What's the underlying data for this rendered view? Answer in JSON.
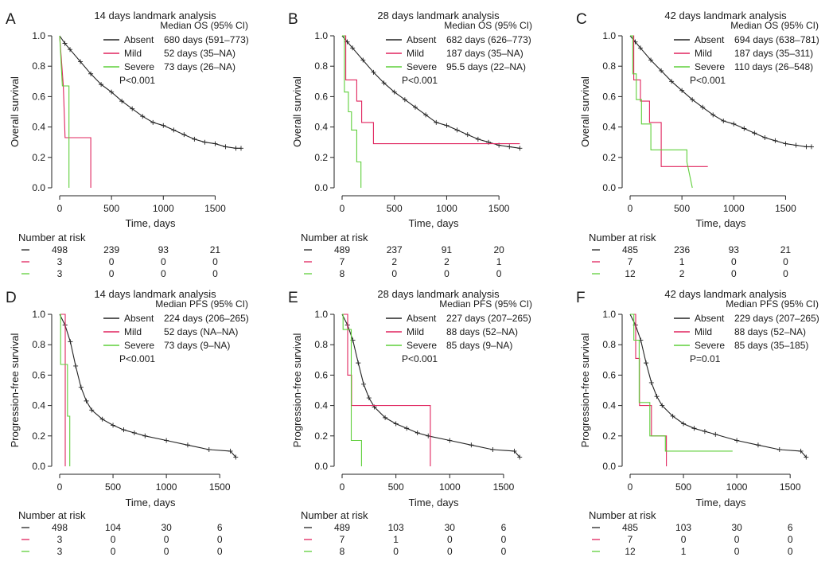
{
  "colors": {
    "absent": "#222222",
    "mild": "#e0245e",
    "severe": "#5fcf3a",
    "axis": "#222222"
  },
  "chart_data": [
    {
      "panel": "A",
      "type": "line",
      "title": "14 days landmark analysis",
      "xlabel": "Time, days",
      "ylabel": "Overall survival",
      "xlim": [
        0,
        1750
      ],
      "ylim": [
        0,
        1
      ],
      "xticks": [
        0,
        500,
        1000,
        1500
      ],
      "yticks": [
        0.0,
        0.2,
        0.4,
        0.6,
        0.8,
        1.0
      ],
      "legend_title": "Median OS (95% CI)",
      "pvalue": "P<0.001",
      "series": [
        {
          "name": "Absent",
          "median": "680 days (591–773)",
          "x": [
            0,
            50,
            100,
            200,
            300,
            400,
            500,
            600,
            700,
            800,
            900,
            1000,
            1100,
            1200,
            1300,
            1400,
            1500,
            1600,
            1700,
            1750
          ],
          "y": [
            1,
            0.95,
            0.91,
            0.83,
            0.75,
            0.68,
            0.63,
            0.57,
            0.52,
            0.47,
            0.43,
            0.41,
            0.38,
            0.35,
            0.32,
            0.3,
            0.29,
            0.27,
            0.26,
            0.26
          ]
        },
        {
          "name": "Mild",
          "median": "52 days (35–NA)",
          "x": [
            0,
            35,
            52,
            300,
            300
          ],
          "y": [
            1,
            0.67,
            0.33,
            0.33,
            0
          ]
        },
        {
          "name": "Severe",
          "median": "73 days (26–NA)",
          "x": [
            0,
            26,
            73,
            90,
            90
          ],
          "y": [
            1,
            0.67,
            0.67,
            0.67,
            0
          ]
        }
      ],
      "risk": {
        "title": "Number at risk",
        "times": [
          0,
          500,
          1000,
          1500
        ],
        "absent": [
          "498",
          "239",
          "93",
          "21"
        ],
        "mild": [
          "3",
          "0",
          "0",
          "0"
        ],
        "severe": [
          "3",
          "0",
          "0",
          "0"
        ]
      }
    },
    {
      "panel": "B",
      "type": "line",
      "title": "28 days landmark analysis",
      "xlabel": "Time, days",
      "ylabel": "Overall survival",
      "xlim": [
        0,
        1750
      ],
      "ylim": [
        0,
        1
      ],
      "xticks": [
        0,
        500,
        1000,
        1500
      ],
      "yticks": [
        0.0,
        0.2,
        0.4,
        0.6,
        0.8,
        1.0
      ],
      "legend_title": "Median OS (95% CI)",
      "pvalue": "P<0.001",
      "series": [
        {
          "name": "Absent",
          "median": "682 days (626–773)",
          "x": [
            0,
            50,
            100,
            200,
            300,
            400,
            500,
            600,
            700,
            800,
            900,
            1000,
            1100,
            1200,
            1300,
            1400,
            1500,
            1600,
            1700
          ],
          "y": [
            1,
            0.96,
            0.92,
            0.84,
            0.76,
            0.69,
            0.63,
            0.58,
            0.53,
            0.48,
            0.43,
            0.41,
            0.38,
            0.35,
            0.32,
            0.3,
            0.28,
            0.27,
            0.26
          ]
        },
        {
          "name": "Mild",
          "median": "187 days (35–NA)",
          "x": [
            0,
            35,
            35,
            140,
            140,
            187,
            187,
            300,
            300,
            1700
          ],
          "y": [
            1,
            1,
            0.71,
            0.71,
            0.57,
            0.57,
            0.43,
            0.43,
            0.29,
            0.29
          ]
        },
        {
          "name": "Severe",
          "median": "95.5 days (22–NA)",
          "x": [
            0,
            22,
            22,
            60,
            60,
            90,
            90,
            140,
            140,
            180,
            180
          ],
          "y": [
            1,
            1,
            0.63,
            0.63,
            0.5,
            0.5,
            0.38,
            0.38,
            0.17,
            0.17,
            0
          ]
        }
      ],
      "risk": {
        "title": "Number at risk",
        "times": [
          0,
          500,
          1000,
          1500
        ],
        "absent": [
          "489",
          "237",
          "91",
          "20"
        ],
        "mild": [
          "7",
          "2",
          "2",
          "1"
        ],
        "severe": [
          "8",
          "0",
          "0",
          "0"
        ]
      }
    },
    {
      "panel": "C",
      "type": "line",
      "title": "42 days landmark analysis",
      "xlabel": "Time, days",
      "ylabel": "Overall survival",
      "xlim": [
        0,
        1750
      ],
      "ylim": [
        0,
        1
      ],
      "xticks": [
        0,
        500,
        1000,
        1500
      ],
      "yticks": [
        0.0,
        0.2,
        0.4,
        0.6,
        0.8,
        1.0
      ],
      "legend_title": "Median OS (95% CI)",
      "pvalue": "P<0.001",
      "series": [
        {
          "name": "Absent",
          "median": "694 days (638–781)",
          "x": [
            0,
            50,
            100,
            200,
            300,
            400,
            500,
            600,
            700,
            800,
            900,
            1000,
            1100,
            1200,
            1300,
            1400,
            1500,
            1600,
            1700,
            1750
          ],
          "y": [
            1,
            0.96,
            0.92,
            0.84,
            0.77,
            0.7,
            0.64,
            0.58,
            0.53,
            0.48,
            0.44,
            0.42,
            0.39,
            0.36,
            0.33,
            0.31,
            0.29,
            0.28,
            0.27,
            0.27
          ]
        },
        {
          "name": "Mild",
          "median": "187 days (35–311)",
          "x": [
            0,
            35,
            35,
            100,
            100,
            187,
            187,
            300,
            300,
            750
          ],
          "y": [
            1,
            1,
            0.71,
            0.71,
            0.57,
            0.57,
            0.43,
            0.43,
            0.14,
            0.14
          ]
        },
        {
          "name": "Severe",
          "median": "110 days (26–548)",
          "x": [
            0,
            26,
            26,
            60,
            60,
            110,
            110,
            200,
            200,
            548,
            548,
            600
          ],
          "y": [
            1,
            1,
            0.75,
            0.75,
            0.58,
            0.58,
            0.42,
            0.42,
            0.25,
            0.25,
            0.17,
            0
          ]
        }
      ],
      "risk": {
        "title": "Number at risk",
        "times": [
          0,
          500,
          1000,
          1500
        ],
        "absent": [
          "485",
          "236",
          "93",
          "21"
        ],
        "mild": [
          "7",
          "1",
          "0",
          "0"
        ],
        "severe": [
          "12",
          "2",
          "0",
          "0"
        ]
      }
    },
    {
      "panel": "D",
      "type": "line",
      "title": "14 days landmark analysis",
      "xlabel": "Time, days",
      "ylabel": "Progression-free survival",
      "xlim": [
        0,
        1700
      ],
      "ylim": [
        0,
        1
      ],
      "xticks": [
        0,
        500,
        1000,
        1500
      ],
      "yticks": [
        0.0,
        0.2,
        0.4,
        0.6,
        0.8,
        1.0
      ],
      "legend_title": "Median PFS (95% CI)",
      "pvalue": "P<0.001",
      "series": [
        {
          "name": "Absent",
          "median": "224 days (206–265)",
          "x": [
            0,
            50,
            100,
            150,
            200,
            250,
            300,
            400,
            500,
            600,
            700,
            800,
            1000,
            1200,
            1400,
            1600,
            1650
          ],
          "y": [
            1,
            0.93,
            0.82,
            0.66,
            0.52,
            0.43,
            0.37,
            0.31,
            0.27,
            0.24,
            0.22,
            0.2,
            0.17,
            0.14,
            0.11,
            0.1,
            0.06
          ]
        },
        {
          "name": "Mild",
          "median": "52 days (NA–NA)",
          "x": [
            0,
            52,
            52
          ],
          "y": [
            1,
            1,
            0
          ]
        },
        {
          "name": "Severe",
          "median": "73 days (9–NA)",
          "x": [
            0,
            9,
            9,
            73,
            73,
            95,
            95
          ],
          "y": [
            1,
            1,
            0.67,
            0.67,
            0.33,
            0.33,
            0
          ]
        }
      ],
      "risk": {
        "title": "Number at risk",
        "times": [
          0,
          500,
          1000,
          1500
        ],
        "absent": [
          "498",
          "104",
          "30",
          "6"
        ],
        "mild": [
          "3",
          "0",
          "0",
          "0"
        ],
        "severe": [
          "3",
          "0",
          "0",
          "0"
        ]
      }
    },
    {
      "panel": "E",
      "type": "line",
      "title": "28 days landmark analysis",
      "xlabel": "Time, days",
      "ylabel": "Progression-free survival",
      "xlim": [
        0,
        1700
      ],
      "ylim": [
        0,
        1
      ],
      "xticks": [
        0,
        500,
        1000,
        1500
      ],
      "yticks": [
        0.0,
        0.2,
        0.4,
        0.6,
        0.8,
        1.0
      ],
      "legend_title": "Median PFS (95% CI)",
      "pvalue": "P<0.001",
      "series": [
        {
          "name": "Absent",
          "median": "227 days (207–265)",
          "x": [
            0,
            50,
            100,
            150,
            200,
            250,
            300,
            400,
            500,
            600,
            700,
            800,
            1000,
            1200,
            1400,
            1600,
            1650
          ],
          "y": [
            1,
            0.93,
            0.83,
            0.68,
            0.54,
            0.45,
            0.39,
            0.32,
            0.28,
            0.25,
            0.22,
            0.2,
            0.17,
            0.14,
            0.11,
            0.1,
            0.06
          ]
        },
        {
          "name": "Mild",
          "median": "88 days (52–NA)",
          "x": [
            0,
            52,
            52,
            88,
            88,
            820,
            820
          ],
          "y": [
            1,
            1,
            0.6,
            0.6,
            0.4,
            0.4,
            0
          ]
        },
        {
          "name": "Severe",
          "median": "85 days (9–NA)",
          "x": [
            0,
            9,
            9,
            85,
            85,
            180,
            180
          ],
          "y": [
            1,
            1,
            0.9,
            0.9,
            0.17,
            0.17,
            0
          ]
        }
      ],
      "risk": {
        "title": "Number at risk",
        "times": [
          0,
          500,
          1000,
          1500
        ],
        "absent": [
          "489",
          "103",
          "30",
          "6"
        ],
        "mild": [
          "7",
          "1",
          "0",
          "0"
        ],
        "severe": [
          "8",
          "0",
          "0",
          "0"
        ]
      }
    },
    {
      "panel": "F",
      "type": "line",
      "title": "42 days landmark analysis",
      "xlabel": "Time, days",
      "ylabel": "Progression-free survival",
      "xlim": [
        0,
        1700
      ],
      "ylim": [
        0,
        1
      ],
      "xticks": [
        0,
        500,
        1000,
        1500
      ],
      "yticks": [
        0.0,
        0.2,
        0.4,
        0.6,
        0.8,
        1.0
      ],
      "legend_title": "Median PFS (95% CI)",
      "pvalue": "P=0.01",
      "series": [
        {
          "name": "Absent",
          "median": "229 days (207–265)",
          "x": [
            0,
            50,
            100,
            150,
            200,
            250,
            300,
            400,
            500,
            600,
            700,
            800,
            1000,
            1200,
            1400,
            1600,
            1650
          ],
          "y": [
            1,
            0.93,
            0.83,
            0.68,
            0.55,
            0.46,
            0.4,
            0.33,
            0.28,
            0.25,
            0.23,
            0.21,
            0.17,
            0.14,
            0.11,
            0.1,
            0.06
          ]
        },
        {
          "name": "Mild",
          "median": "88 days (52–NA)",
          "x": [
            0,
            52,
            52,
            88,
            88,
            200,
            200,
            340,
            340
          ],
          "y": [
            1,
            1,
            0.71,
            0.71,
            0.4,
            0.4,
            0.2,
            0.2,
            0
          ]
        },
        {
          "name": "Severe",
          "median": "85 days (35–185)",
          "x": [
            0,
            35,
            35,
            85,
            85,
            185,
            185,
            330,
            330,
            960
          ],
          "y": [
            1,
            1,
            0.83,
            0.83,
            0.42,
            0.42,
            0.2,
            0.2,
            0.1,
            0.1
          ]
        }
      ],
      "risk": {
        "title": "Number at risk",
        "times": [
          0,
          500,
          1000,
          1500
        ],
        "absent": [
          "485",
          "103",
          "30",
          "6"
        ],
        "mild": [
          "7",
          "0",
          "0",
          "0"
        ],
        "severe": [
          "12",
          "1",
          "0",
          "0"
        ]
      }
    }
  ]
}
